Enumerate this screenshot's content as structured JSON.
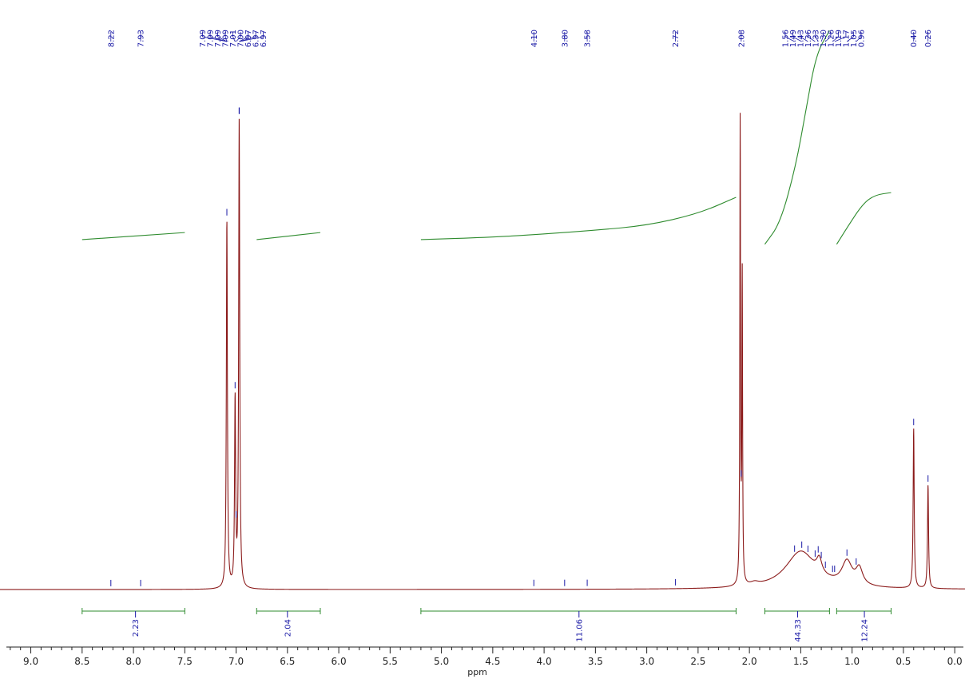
{
  "chart_data": {
    "type": "line",
    "title": "",
    "xlabel": "ppm",
    "ylabel": "",
    "xlim": [
      9.3,
      -0.1
    ],
    "x_reversed": true,
    "grid": false,
    "legend": "none",
    "x_ticks": [
      "9.0",
      "8.5",
      "8.0",
      "7.5",
      "7.0",
      "6.5",
      "6.0",
      "5.5",
      "5.0",
      "4.5",
      "4.0",
      "3.5",
      "3.0",
      "2.5",
      "2.0",
      "1.5",
      "1.0",
      "0.5",
      "0.0"
    ],
    "peak_groups": [
      {
        "labels": [
          "8.22"
        ],
        "positions": [
          8.22
        ]
      },
      {
        "labels": [
          "7.93"
        ],
        "positions": [
          7.93
        ]
      },
      {
        "labels": [
          "7.09",
          "7.09",
          "7.09",
          "7.09",
          "7.01",
          "7.00",
          "6.97",
          "6.97",
          "6.97"
        ],
        "positions": [
          7.09,
          7.09,
          7.09,
          7.09,
          7.01,
          7.0,
          6.97,
          6.97,
          6.97
        ]
      },
      {
        "labels": [
          "4.10"
        ],
        "positions": [
          4.1
        ]
      },
      {
        "labels": [
          "3.80"
        ],
        "positions": [
          3.8
        ]
      },
      {
        "labels": [
          "3.58"
        ],
        "positions": [
          3.58
        ]
      },
      {
        "labels": [
          "2.72"
        ],
        "positions": [
          2.72
        ]
      },
      {
        "labels": [
          "2.08"
        ],
        "positions": [
          2.08
        ]
      },
      {
        "labels": [
          "1.56",
          "1.49",
          "1.43",
          "1.36",
          "1.33",
          "1.30",
          "1.26",
          "1.19",
          "1.17",
          "1.05",
          "0.96"
        ],
        "positions": [
          1.56,
          1.49,
          1.43,
          1.36,
          1.33,
          1.3,
          1.26,
          1.19,
          1.17,
          1.05,
          0.96
        ]
      },
      {
        "labels": [
          "0.40"
        ],
        "positions": [
          0.4
        ]
      },
      {
        "labels": [
          "0.26"
        ],
        "positions": [
          0.26
        ]
      }
    ],
    "integrals": [
      {
        "from": 8.5,
        "to": 7.5,
        "value": "2.23",
        "label_pos": 7.98
      },
      {
        "from": 6.8,
        "to": 6.18,
        "value": "2.04",
        "label_pos": 6.5
      },
      {
        "from": 5.2,
        "to": 2.13,
        "value": "11.06",
        "label_pos": 3.66
      },
      {
        "from": 1.85,
        "to": 1.22,
        "value": "44.33",
        "label_pos": 1.53
      },
      {
        "from": 1.15,
        "to": 0.62,
        "value": "12.24",
        "label_pos": 0.88
      }
    ],
    "integral_curves": [
      {
        "points": [
          [
            8.5,
            0.745
          ],
          [
            7.5,
            0.76
          ]
        ]
      },
      {
        "points": [
          [
            6.8,
            0.745
          ],
          [
            6.18,
            0.76
          ]
        ]
      },
      {
        "points": [
          [
            5.2,
            0.745
          ],
          [
            4.5,
            0.75
          ],
          [
            4.0,
            0.757
          ],
          [
            3.5,
            0.765
          ],
          [
            3.0,
            0.775
          ],
          [
            2.5,
            0.8
          ],
          [
            2.13,
            0.835
          ]
        ]
      },
      {
        "points": [
          [
            1.85,
            0.735
          ],
          [
            1.7,
            0.78
          ],
          [
            1.55,
            0.9
          ],
          [
            1.45,
            1.02
          ],
          [
            1.35,
            1.14
          ],
          [
            1.22,
            1.19
          ]
        ]
      },
      {
        "points": [
          [
            1.15,
            0.735
          ],
          [
            1.05,
            0.77
          ],
          [
            0.9,
            0.82
          ],
          [
            0.78,
            0.84
          ],
          [
            0.62,
            0.845
          ]
        ]
      }
    ],
    "spectrum": {
      "baseline": 0.0,
      "peaks": [
        {
          "shift": 7.09,
          "height": 0.785,
          "width": 0.006
        },
        {
          "shift": 7.01,
          "height": 0.395,
          "width": 0.006
        },
        {
          "shift": 6.97,
          "height": 0.995,
          "width": 0.006
        },
        {
          "shift": 2.09,
          "height": 0.985,
          "width": 0.004
        },
        {
          "shift": 2.07,
          "height": 0.65,
          "width": 0.004
        },
        {
          "shift": 0.4,
          "height": 0.34,
          "width": 0.006
        },
        {
          "shift": 0.26,
          "height": 0.22,
          "width": 0.006
        },
        {
          "shift": 1.5,
          "height": 0.08,
          "width": 0.18
        },
        {
          "shift": 1.32,
          "height": 0.03,
          "width": 0.03
        },
        {
          "shift": 1.05,
          "height": 0.05,
          "width": 0.06
        },
        {
          "shift": 0.93,
          "height": 0.035,
          "width": 0.04
        },
        {
          "shift": 1.95,
          "height": 0.006,
          "width": 0.05
        }
      ]
    },
    "colors": {
      "spectrum": "#8b1a1a",
      "integral": "#2e8b2e",
      "peak_label": "#1a1aa6",
      "axis": "#222222"
    }
  }
}
